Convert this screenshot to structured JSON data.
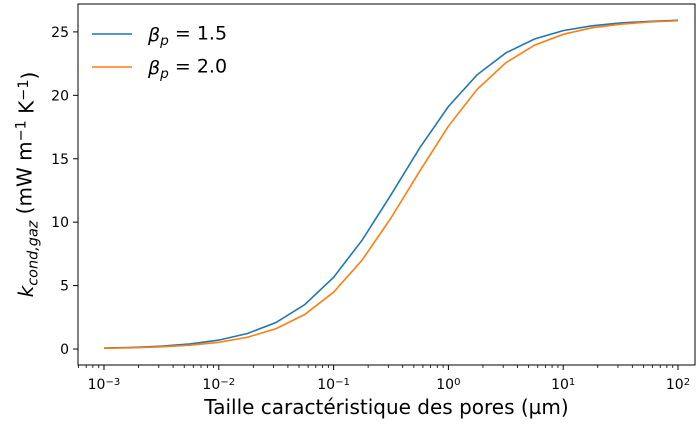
{
  "chart_data": {
    "type": "line",
    "xlabel": "Taille caractéristique des pores (µm)",
    "ylabel": "k_{cond,gaz} (mW m^{−1} K^{−1})",
    "xscale": "log",
    "minor_ticks": true,
    "legend": "upper left",
    "x": [
      0.001,
      0.001778,
      0.003162,
      0.005623,
      0.01,
      0.01778,
      0.03162,
      0.05623,
      0.1,
      0.1778,
      0.3162,
      0.5623,
      1,
      1.778,
      3.162,
      5.623,
      10,
      17.78,
      31.62,
      56.23,
      100
    ],
    "series": [
      {
        "name": "β_{p} = 1.5",
        "color": "#1f77b4",
        "values": [
          0.072,
          0.128,
          0.226,
          0.4,
          0.703,
          1.224,
          2.1,
          3.51,
          5.65,
          8.6,
          12.16,
          15.85,
          19.12,
          21.62,
          23.34,
          24.44,
          25.1,
          25.48,
          25.71,
          25.83,
          25.91
        ]
      },
      {
        "name": "β_{p} = 2.0",
        "color": "#ff7f0e",
        "values": [
          0.054,
          0.096,
          0.17,
          0.301,
          0.531,
          0.929,
          1.607,
          2.73,
          4.48,
          7.03,
          10.33,
          14.02,
          17.57,
          20.47,
          22.57,
          23.95,
          24.81,
          25.32,
          25.61,
          25.78,
          25.88
        ]
      }
    ],
    "xlim": [
      0.000594,
      140.6
    ],
    "ylim": [
      -1.26,
      27.2
    ],
    "xticks": [
      {
        "value": 0.001,
        "label": "10^{−3}"
      },
      {
        "value": 0.01,
        "label": "10^{−2}"
      },
      {
        "value": 0.1,
        "label": "10^{−1}"
      },
      {
        "value": 1,
        "label": "10^{0}"
      },
      {
        "value": 10,
        "label": "10^{1}"
      },
      {
        "value": 100,
        "label": "10^{2}"
      }
    ],
    "yticks": [
      0,
      5,
      10,
      15,
      20,
      25
    ]
  }
}
